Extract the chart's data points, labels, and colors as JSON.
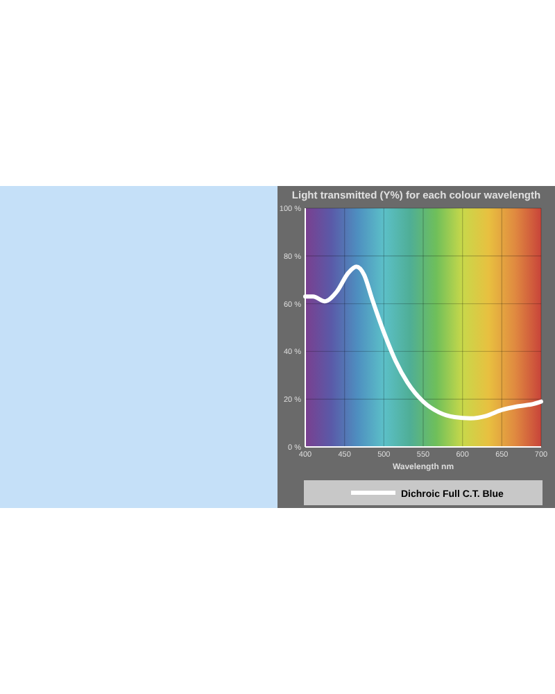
{
  "chart_data": {
    "type": "line",
    "title": "Light transmitted (Y%) for each colour wavelength",
    "xlabel": "Wavelength nm",
    "x": [
      400,
      410,
      425,
      440,
      455,
      465,
      475,
      485,
      500,
      515,
      530,
      550,
      570,
      590,
      610,
      630,
      650,
      670,
      690,
      700
    ],
    "series": [
      {
        "name": "Dichroic Full C.T. Blue",
        "color": "#ffffff",
        "values": [
          63,
          63,
          61,
          65,
          73,
          75.5,
          72,
          62,
          48,
          36,
          27,
          19,
          14.5,
          12.5,
          12,
          13,
          15.5,
          17,
          18,
          19
        ]
      }
    ],
    "xlim": [
      400,
      700
    ],
    "xticks": [
      400,
      450,
      500,
      550,
      600,
      650,
      700
    ],
    "ylim": [
      0,
      100
    ],
    "yticks": [
      {
        "value": 0,
        "label": "0 %"
      },
      {
        "value": 20,
        "label": "20 %"
      },
      {
        "value": 40,
        "label": "40 %"
      },
      {
        "value": 60,
        "label": "60 %"
      },
      {
        "value": 80,
        "label": "80 %"
      },
      {
        "value": 100,
        "label": "100 %"
      }
    ],
    "grid": true,
    "legend": "bottom",
    "marker": "none",
    "line_style": "solid"
  }
}
